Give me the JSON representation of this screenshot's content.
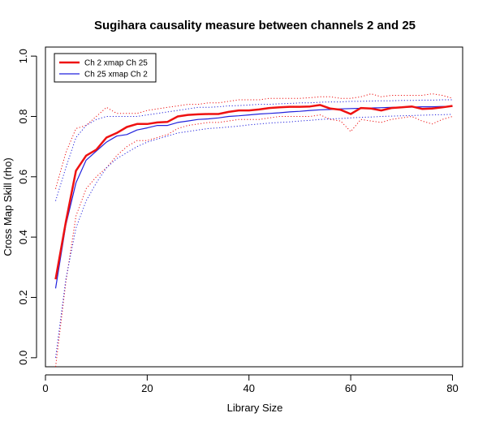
{
  "chart_data": {
    "type": "line",
    "title": "Sugihara causality measure between channels  2 and 25",
    "xlabel": "Library Size",
    "ylabel": "Cross Map Skill (rho)",
    "xlim": [
      0,
      82
    ],
    "ylim": [
      -0.03,
      1.03
    ],
    "xticks": [
      0,
      20,
      40,
      60,
      80
    ],
    "yticks": [
      0.0,
      0.2,
      0.4,
      0.6,
      0.8,
      1.0
    ],
    "xtick_labels": [
      "0",
      "20",
      "40",
      "60",
      "80"
    ],
    "ytick_labels": [
      "0.0",
      "0.2",
      "0.4",
      "0.6",
      "0.8",
      "1.0"
    ],
    "legend_position": "top-left",
    "grid": false,
    "x": [
      2,
      4,
      6,
      8,
      10,
      12,
      14,
      16,
      18,
      20,
      22,
      24,
      26,
      28,
      30,
      32,
      34,
      36,
      38,
      40,
      42,
      44,
      46,
      48,
      50,
      52,
      54,
      56,
      58,
      60,
      62,
      64,
      66,
      68,
      70,
      72,
      74,
      76,
      78,
      80
    ],
    "series": [
      {
        "name": "Ch 2 xmap Ch 25",
        "color": "#ee1111",
        "style": "solid",
        "line_width": 2.5,
        "legend": true,
        "values": [
          0.26,
          0.45,
          0.62,
          0.67,
          0.69,
          0.73,
          0.745,
          0.765,
          0.775,
          0.775,
          0.78,
          0.782,
          0.8,
          0.805,
          0.807,
          0.808,
          0.808,
          0.815,
          0.82,
          0.82,
          0.823,
          0.828,
          0.83,
          0.832,
          0.832,
          0.833,
          0.838,
          0.826,
          0.822,
          0.808,
          0.828,
          0.826,
          0.82,
          0.828,
          0.83,
          0.833,
          0.825,
          0.826,
          0.83,
          0.835
        ]
      },
      {
        "name": "Ch 25  xmap Ch 2",
        "color": "#2222dd",
        "style": "solid",
        "line_width": 1.2,
        "legend": true,
        "values": [
          0.23,
          0.44,
          0.58,
          0.655,
          0.685,
          0.715,
          0.735,
          0.74,
          0.755,
          0.762,
          0.77,
          0.77,
          0.78,
          0.785,
          0.79,
          0.792,
          0.795,
          0.8,
          0.802,
          0.805,
          0.808,
          0.81,
          0.812,
          0.815,
          0.817,
          0.82,
          0.822,
          0.823,
          0.825,
          0.826,
          0.827,
          0.828,
          0.829,
          0.83,
          0.831,
          0.831,
          0.832,
          0.832,
          0.833,
          0.833
        ]
      },
      {
        "color": "#ee1111",
        "style": "dotted",
        "line_width": 1,
        "legend": false,
        "values": [
          0.56,
          0.68,
          0.76,
          0.77,
          0.8,
          0.83,
          0.81,
          0.81,
          0.81,
          0.82,
          0.825,
          0.83,
          0.835,
          0.84,
          0.84,
          0.845,
          0.845,
          0.85,
          0.855,
          0.855,
          0.855,
          0.86,
          0.86,
          0.86,
          0.86,
          0.862,
          0.865,
          0.865,
          0.86,
          0.86,
          0.865,
          0.875,
          0.865,
          0.87,
          0.87,
          0.87,
          0.87,
          0.875,
          0.87,
          0.86
        ]
      },
      {
        "color": "#ee1111",
        "style": "dotted",
        "line_width": 1,
        "legend": false,
        "values": [
          -0.03,
          0.25,
          0.47,
          0.56,
          0.6,
          0.63,
          0.67,
          0.7,
          0.72,
          0.72,
          0.73,
          0.74,
          0.76,
          0.77,
          0.775,
          0.78,
          0.78,
          0.785,
          0.79,
          0.79,
          0.79,
          0.795,
          0.8,
          0.8,
          0.8,
          0.8,
          0.805,
          0.79,
          0.785,
          0.75,
          0.79,
          0.785,
          0.78,
          0.79,
          0.795,
          0.8,
          0.785,
          0.775,
          0.79,
          0.8
        ]
      },
      {
        "color": "#2222dd",
        "style": "dotted",
        "line_width": 1,
        "legend": false,
        "values": [
          0.52,
          0.63,
          0.73,
          0.77,
          0.79,
          0.8,
          0.8,
          0.8,
          0.8,
          0.805,
          0.81,
          0.815,
          0.82,
          0.825,
          0.83,
          0.83,
          0.832,
          0.835,
          0.836,
          0.838,
          0.84,
          0.84,
          0.842,
          0.843,
          0.845,
          0.845,
          0.847,
          0.848,
          0.848,
          0.85,
          0.85,
          0.851,
          0.852,
          0.852,
          0.853,
          0.853,
          0.854,
          0.854,
          0.855,
          0.855
        ]
      },
      {
        "color": "#2222dd",
        "style": "dotted",
        "line_width": 1,
        "legend": false,
        "values": [
          0.0,
          0.26,
          0.43,
          0.52,
          0.58,
          0.63,
          0.66,
          0.68,
          0.7,
          0.715,
          0.725,
          0.735,
          0.745,
          0.75,
          0.755,
          0.76,
          0.762,
          0.765,
          0.768,
          0.772,
          0.775,
          0.778,
          0.78,
          0.782,
          0.785,
          0.787,
          0.79,
          0.792,
          0.793,
          0.795,
          0.797,
          0.798,
          0.8,
          0.801,
          0.802,
          0.803,
          0.804,
          0.805,
          0.806,
          0.807
        ]
      }
    ]
  }
}
